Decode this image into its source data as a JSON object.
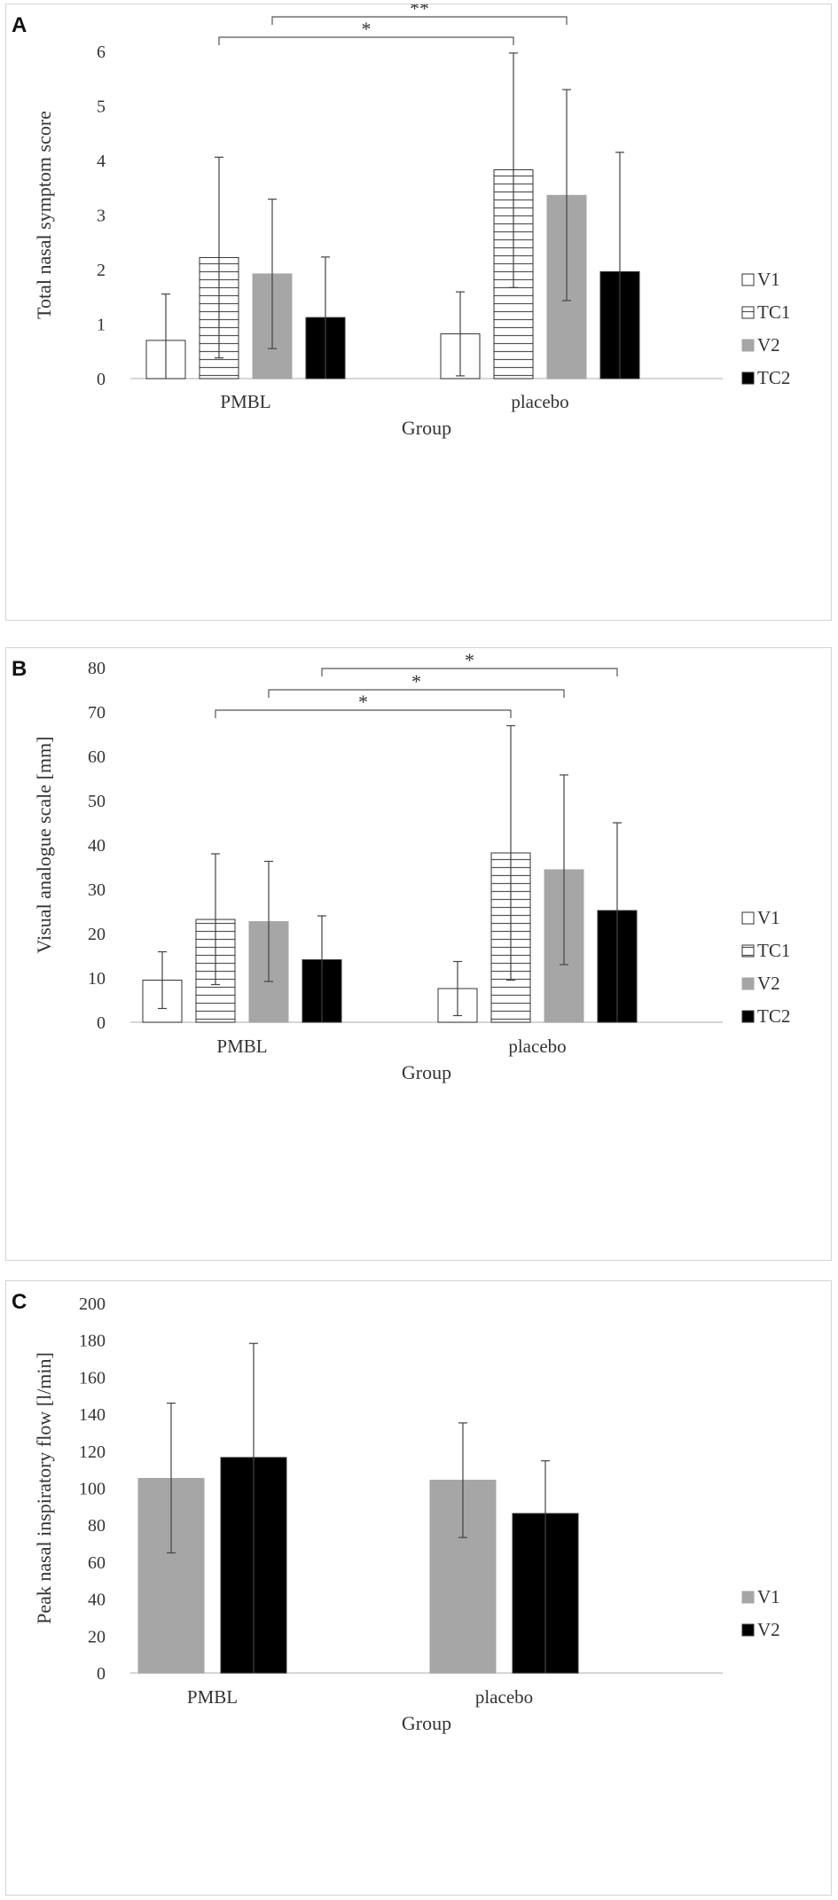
{
  "figure": {
    "panels": [
      {
        "letter": "A"
      },
      {
        "letter": "B"
      },
      {
        "letter": "C"
      }
    ]
  },
  "chart_data": [
    {
      "type": "bar",
      "panel": "A",
      "ylabel": "Total nasal symptom score",
      "xlabel": "Group",
      "ylim": [
        0,
        6
      ],
      "yticks": [
        "0",
        "1",
        "2",
        "3",
        "4",
        "5",
        "6"
      ],
      "categories": [
        "PMBL",
        "placebo"
      ],
      "legend_position": "right",
      "series": [
        {
          "name": "V1",
          "style": "white",
          "values": [
            0.7,
            0.82
          ],
          "err_low": [
            0.0,
            0.05
          ],
          "err_high": [
            1.55,
            1.59
          ]
        },
        {
          "name": "TC1",
          "style": "hatch",
          "values": [
            2.22,
            3.83
          ],
          "err_low": [
            0.38,
            1.67
          ],
          "err_high": [
            4.06,
            5.97
          ]
        },
        {
          "name": "V2",
          "style": "gray",
          "values": [
            1.92,
            3.36
          ],
          "err_low": [
            0.55,
            1.43
          ],
          "err_high": [
            3.29,
            5.3
          ]
        },
        {
          "name": "TC2",
          "style": "black",
          "values": [
            1.12,
            1.96
          ],
          "err_low": [
            0.0,
            0.0
          ],
          "err_high": [
            2.23,
            4.15
          ]
        }
      ],
      "significance": [
        {
          "label": "*",
          "from": [
            0,
            1
          ],
          "to": [
            1,
            1
          ]
        },
        {
          "label": "**",
          "from": [
            0,
            2
          ],
          "to": [
            1,
            2
          ]
        }
      ]
    },
    {
      "type": "bar",
      "panel": "B",
      "ylabel": "Visual analogue scale [mm]",
      "xlabel": "Group",
      "ylim": [
        0,
        80
      ],
      "yticks": [
        "0",
        "10",
        "20",
        "30",
        "40",
        "50",
        "60",
        "70",
        "80"
      ],
      "categories": [
        "PMBL",
        "placebo"
      ],
      "legend_position": "right",
      "series": [
        {
          "name": "V1",
          "style": "white",
          "values": [
            9.5,
            7.6
          ],
          "err_low": [
            3.1,
            1.5
          ],
          "err_high": [
            15.9,
            13.7
          ]
        },
        {
          "name": "TC1",
          "style": "hatch",
          "values": [
            23.2,
            38.2
          ],
          "err_low": [
            8.5,
            9.5
          ],
          "err_high": [
            38.0,
            66.9
          ]
        },
        {
          "name": "V2",
          "style": "gray",
          "values": [
            22.7,
            34.4
          ],
          "err_low": [
            9.2,
            13.0
          ],
          "err_high": [
            36.3,
            55.8
          ]
        },
        {
          "name": "TC2",
          "style": "black",
          "values": [
            14.1,
            25.2
          ],
          "err_low": [
            0.0,
            0.0
          ],
          "err_high": [
            24.0,
            45.0
          ]
        }
      ],
      "significance": [
        {
          "label": "*",
          "from": [
            0,
            1
          ],
          "to": [
            1,
            1
          ]
        },
        {
          "label": "*",
          "from": [
            0,
            2
          ],
          "to": [
            1,
            2
          ]
        },
        {
          "label": "*",
          "from": [
            0,
            3
          ],
          "to": [
            1,
            3
          ]
        }
      ]
    },
    {
      "type": "bar",
      "panel": "C",
      "ylabel": "Peak nasal inspiratory flow [l/min]",
      "xlabel": "Group",
      "ylim": [
        0,
        200
      ],
      "yticks": [
        "0",
        "20",
        "40",
        "60",
        "80",
        "100",
        "120",
        "140",
        "160",
        "180",
        "200"
      ],
      "categories": [
        "PMBL",
        "placebo"
      ],
      "legend_position": "right",
      "series": [
        {
          "name": "V1",
          "style": "gray",
          "values": [
            105.3,
            104.3
          ],
          "err_low": [
            65.0,
            73.3
          ],
          "err_high": [
            146.0,
            135.3
          ]
        },
        {
          "name": "V2",
          "style": "black",
          "values": [
            116.6,
            86.3
          ],
          "err_low": [
            0.0,
            0.0
          ],
          "err_high": [
            178.3,
            114.8
          ]
        }
      ],
      "significance": []
    }
  ],
  "colors": {
    "gray": "#a6a6a6",
    "black": "#000000",
    "axis": "#c8c8c8",
    "text": "#333333",
    "error": "#444444"
  }
}
